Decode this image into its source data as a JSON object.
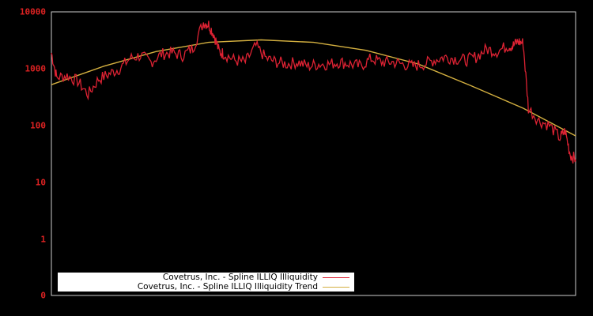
{
  "chart_data": {
    "type": "line",
    "title": "",
    "xlabel": "",
    "ylabel": "",
    "yscale": "log",
    "y_ticks": [
      "10000",
      "1000",
      "100",
      "10",
      "1",
      "0"
    ],
    "ylim": [
      0.1,
      10000
    ],
    "grid": false,
    "legend_position": "bottom-left",
    "colors": {
      "series": "#dd2233",
      "trend": "#d4b040",
      "axis": "#cccccc",
      "tick_label": "#dd2222"
    },
    "series": [
      {
        "name": "Covetrus, Inc. - Spline ILLIQ Illiquidity",
        "x": [
          0,
          0.01,
          0.03,
          0.05,
          0.07,
          0.09,
          0.11,
          0.13,
          0.15,
          0.17,
          0.19,
          0.21,
          0.23,
          0.25,
          0.27,
          0.29,
          0.3,
          0.31,
          0.32,
          0.33,
          0.35,
          0.37,
          0.39,
          0.41,
          0.43,
          0.45,
          0.47,
          0.49,
          0.51,
          0.53,
          0.55,
          0.57,
          0.59,
          0.61,
          0.63,
          0.65,
          0.67,
          0.69,
          0.71,
          0.73,
          0.75,
          0.77,
          0.79,
          0.81,
          0.83,
          0.85,
          0.87,
          0.88,
          0.89,
          0.9,
          0.91,
          0.93,
          0.95,
          0.97,
          0.98,
          0.99,
          1.0
        ],
        "values": [
          1900,
          700,
          750,
          600,
          350,
          650,
          800,
          1000,
          1500,
          1700,
          1300,
          1800,
          1900,
          1700,
          2300,
          6500,
          6000,
          4000,
          2000,
          1800,
          1400,
          1300,
          2500,
          1500,
          1300,
          1200,
          1300,
          1100,
          1200,
          1200,
          1300,
          1200,
          1100,
          1500,
          1300,
          1300,
          1200,
          1100,
          1200,
          1400,
          1600,
          1500,
          1400,
          1600,
          2200,
          2000,
          2500,
          2500,
          3000,
          2800,
          200,
          120,
          100,
          60,
          80,
          30,
          25
        ]
      },
      {
        "name": "Covetrus, Inc. - Spline ILLIQ Illiquidity Trend",
        "x": [
          0,
          0.1,
          0.2,
          0.3,
          0.4,
          0.5,
          0.6,
          0.7,
          0.8,
          0.9,
          1.0
        ],
        "values": [
          520,
          1100,
          2000,
          2900,
          3200,
          2900,
          2100,
          1200,
          500,
          200,
          65
        ]
      }
    ]
  },
  "legend": {
    "items": [
      {
        "label": "Covetrus, Inc. - Spline ILLIQ Illiquidity"
      },
      {
        "label": "Covetrus, Inc. - Spline ILLIQ Illiquidity Trend"
      }
    ]
  }
}
